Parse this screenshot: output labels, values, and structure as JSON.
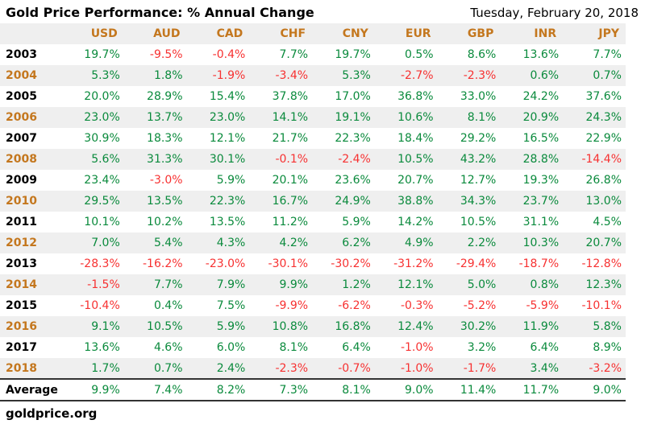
{
  "header": {
    "title": "Gold Price Performance: % Annual Change",
    "date": "Tuesday, February 20, 2018"
  },
  "chart_data": {
    "type": "table",
    "title": "Gold Price Performance: % Annual Change",
    "unit": "%",
    "columns": [
      "USD",
      "AUD",
      "CAD",
      "CHF",
      "CNY",
      "EUR",
      "GBP",
      "INR",
      "JPY"
    ],
    "years": [
      "2003",
      "2004",
      "2005",
      "2006",
      "2007",
      "2008",
      "2009",
      "2010",
      "2011",
      "2012",
      "2013",
      "2014",
      "2015",
      "2016",
      "2017",
      "2018"
    ],
    "rows": [
      [
        19.7,
        -9.5,
        -0.4,
        7.7,
        19.7,
        0.5,
        8.6,
        13.6,
        7.7
      ],
      [
        5.3,
        1.8,
        -1.9,
        -3.4,
        5.3,
        -2.7,
        -2.3,
        0.6,
        0.7
      ],
      [
        20.0,
        28.9,
        15.4,
        37.8,
        17.0,
        36.8,
        33.0,
        24.2,
        37.6
      ],
      [
        23.0,
        13.7,
        23.0,
        14.1,
        19.1,
        10.6,
        8.1,
        20.9,
        24.3
      ],
      [
        30.9,
        18.3,
        12.1,
        21.7,
        22.3,
        18.4,
        29.2,
        16.5,
        22.9
      ],
      [
        5.6,
        31.3,
        30.1,
        -0.1,
        -2.4,
        10.5,
        43.2,
        28.8,
        -14.4
      ],
      [
        23.4,
        -3.0,
        5.9,
        20.1,
        23.6,
        20.7,
        12.7,
        19.3,
        26.8
      ],
      [
        29.5,
        13.5,
        22.3,
        16.7,
        24.9,
        38.8,
        34.3,
        23.7,
        13.0
      ],
      [
        10.1,
        10.2,
        13.5,
        11.2,
        5.9,
        14.2,
        10.5,
        31.1,
        4.5
      ],
      [
        7.0,
        5.4,
        4.3,
        4.2,
        6.2,
        4.9,
        2.2,
        10.3,
        20.7
      ],
      [
        -28.3,
        -16.2,
        -23.0,
        -30.1,
        -30.2,
        -31.2,
        -29.4,
        -18.7,
        -12.8
      ],
      [
        -1.5,
        7.7,
        7.9,
        9.9,
        1.2,
        12.1,
        5.0,
        0.8,
        12.3
      ],
      [
        -10.4,
        0.4,
        7.5,
        -9.9,
        -6.2,
        -0.3,
        -5.2,
        -5.9,
        -10.1
      ],
      [
        9.1,
        10.5,
        5.9,
        10.8,
        16.8,
        12.4,
        30.2,
        11.9,
        5.8
      ],
      [
        13.6,
        4.6,
        6.0,
        8.1,
        6.4,
        -1.0,
        3.2,
        6.4,
        8.9
      ],
      [
        1.7,
        0.7,
        2.4,
        -2.3,
        -0.7,
        -1.0,
        -1.7,
        3.4,
        -3.2
      ]
    ],
    "average_label": "Average",
    "average": [
      9.9,
      7.4,
      8.2,
      7.3,
      8.1,
      9.0,
      11.4,
      11.7,
      9.0
    ]
  },
  "footer": {
    "site_label": "goldprice.org"
  },
  "colors": {
    "positive": "#0A8A3C",
    "negative": "#F73131",
    "accent_orange": "#C4771E",
    "band_gray": "#EFEFEF"
  }
}
